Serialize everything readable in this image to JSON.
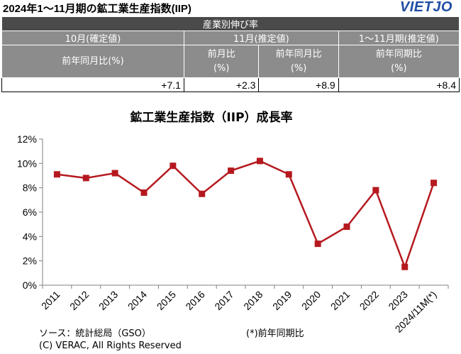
{
  "header": {
    "title": "2024年1～11月期の鉱工業生産指数(IIP)",
    "logo": "VIETJO"
  },
  "summary": {
    "caption": "産業別伸び率",
    "col_oct": "10月(確定値)",
    "col_nov": "11月(推定値)",
    "col_ytd": "1～11月期(推定値)",
    "sub_oct_yoy": "前年同月比(%)",
    "sub_nov_mom": "前月比",
    "sub_nov_mom_unit": "(%)",
    "sub_nov_yoy": "前年同月比",
    "sub_nov_yoy_unit": "(%)",
    "sub_ytd_yoy": "前年同期比",
    "sub_ytd_yoy_unit": "(%)",
    "val_oct_yoy": "+7.1",
    "val_nov_mom": "+2.3",
    "val_nov_yoy": "+8.9",
    "val_ytd_yoy": "+8.4"
  },
  "chart_data": {
    "type": "line",
    "title": "鉱工業生産指数（IIP）成長率",
    "categories": [
      "2011",
      "2012",
      "2013",
      "2014",
      "2015",
      "2016",
      "2017",
      "2018",
      "2019",
      "2020",
      "2021",
      "2022",
      "2023",
      "2024/11M(*)"
    ],
    "series": [
      {
        "values": [
          9.1,
          8.8,
          9.2,
          7.6,
          9.8,
          7.5,
          9.4,
          10.2,
          9.1,
          3.4,
          4.8,
          7.8,
          1.5,
          8.4
        ]
      }
    ],
    "ylim": [
      0,
      12
    ],
    "yticks": [
      "0%",
      "2%",
      "4%",
      "6%",
      "8%",
      "10%",
      "12%"
    ],
    "grid": false,
    "color": "#b5191f"
  },
  "footer": {
    "source": "ソース：統計総局（GSO）",
    "note": "(*)前年同期比",
    "copyright": "(C) VERAC, All Rights Reserved"
  }
}
